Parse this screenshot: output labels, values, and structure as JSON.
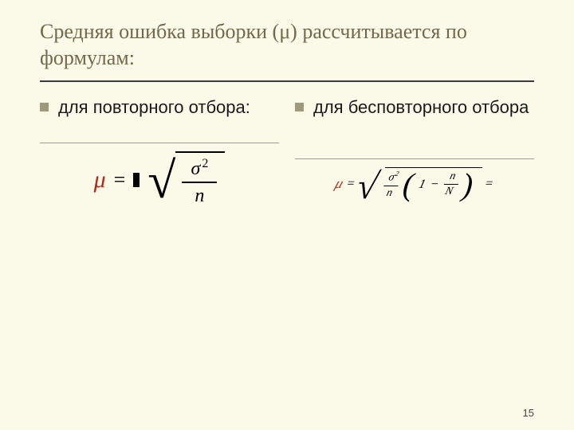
{
  "title": "Средняя ошибка выборки (μ) рассчитывается по формулам:",
  "columns": {
    "left": {
      "bullet": "для повторного отбора:",
      "formula": {
        "lhs_symbol": "μ",
        "lhs_color": "#b02a1a",
        "numerator": "σ",
        "numerator_power": "2",
        "denominator": "n"
      }
    },
    "right": {
      "bullet": "для бесповторного отбора",
      "formula": {
        "lhs_symbol": "μ",
        "lhs_color": "#b02a1a",
        "frac1_top": "σ",
        "frac1_top_power": "2",
        "frac1_bot": "n",
        "one": "1",
        "frac2_top": "n",
        "frac2_bot": "N",
        "trailing": "="
      }
    }
  },
  "page_number": "15",
  "colors": {
    "background": "#fbfae8",
    "title_text": "#736849",
    "bullet_square": "#9f997c",
    "body_text": "#1a1a1a",
    "formula_accent": "#b02a1a",
    "rule": "#3a3a3a"
  }
}
